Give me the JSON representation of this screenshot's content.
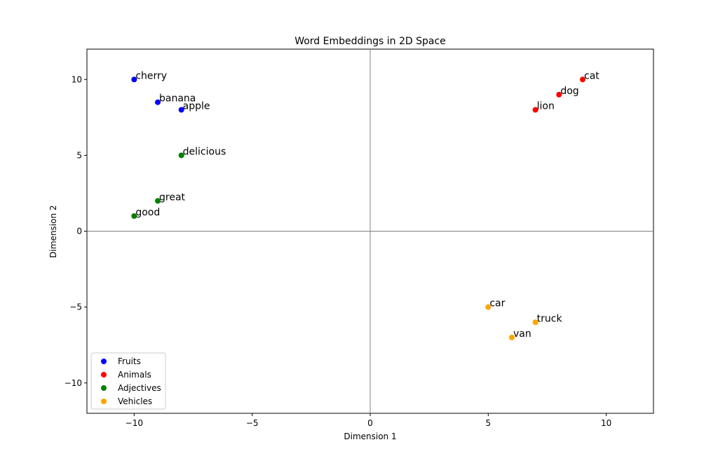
{
  "chart_data": {
    "type": "scatter",
    "title": "Word Embeddings in 2D Space",
    "xlabel": "Dimension 1",
    "ylabel": "Dimension 2",
    "xlim": [
      -12,
      12
    ],
    "ylim": [
      -12,
      12
    ],
    "xticks": [
      -10,
      -5,
      0,
      5,
      10
    ],
    "yticks": [
      -10,
      -5,
      0,
      5,
      10
    ],
    "xtick_labels": [
      "−10",
      "−5",
      "0",
      "5",
      "10"
    ],
    "ytick_labels": [
      "−10",
      "−5",
      "0",
      "5",
      "10"
    ],
    "grid": false,
    "zero_lines": true,
    "legend_position": "lower-left",
    "series": [
      {
        "name": "Fruits",
        "color": "#0000ff",
        "points": [
          {
            "label": "apple",
            "x": -8,
            "y": 8
          },
          {
            "label": "banana",
            "x": -9,
            "y": 8.5
          },
          {
            "label": "cherry",
            "x": -10,
            "y": 10
          }
        ]
      },
      {
        "name": "Animals",
        "color": "#ff0000",
        "points": [
          {
            "label": "dog",
            "x": 8,
            "y": 9
          },
          {
            "label": "cat",
            "x": 9,
            "y": 10
          },
          {
            "label": "lion",
            "x": 7,
            "y": 8
          }
        ]
      },
      {
        "name": "Adjectives",
        "color": "#008000",
        "points": [
          {
            "label": "good",
            "x": -10,
            "y": 1
          },
          {
            "label": "great",
            "x": -9,
            "y": 2
          },
          {
            "label": "delicious",
            "x": -8,
            "y": 5
          }
        ]
      },
      {
        "name": "Vehicles",
        "color": "#ffa500",
        "points": [
          {
            "label": "car",
            "x": 5,
            "y": -5
          },
          {
            "label": "truck",
            "x": 7,
            "y": -6
          },
          {
            "label": "van",
            "x": 6,
            "y": -7
          }
        ]
      }
    ]
  }
}
